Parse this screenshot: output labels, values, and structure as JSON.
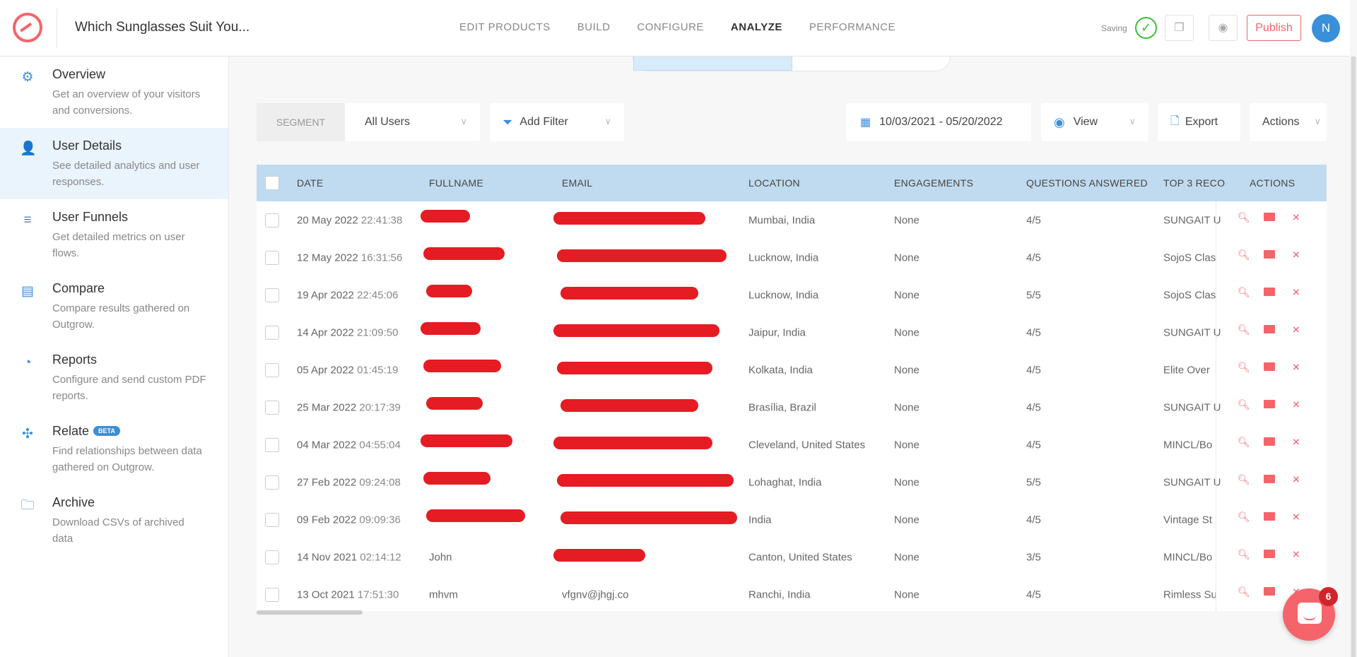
{
  "header": {
    "title": "Which Sunglasses Suit You...",
    "nav": [
      "EDIT PRODUCTS",
      "BUILD",
      "CONFIGURE",
      "ANALYZE",
      "PERFORMANCE"
    ],
    "active_nav": "ANALYZE",
    "saving": "Saving",
    "publish": "Publish",
    "avatar": "N"
  },
  "sidebar": {
    "items": [
      {
        "label": "Overview",
        "desc": "Get an overview of your visitors and conversions.",
        "icon": "gear-icon"
      },
      {
        "label": "User Details",
        "desc": "See detailed analytics and user responses.",
        "icon": "user-icon",
        "active": true
      },
      {
        "label": "User Funnels",
        "desc": "Get detailed metrics on user flows.",
        "icon": "funnel-lines-icon"
      },
      {
        "label": "Compare",
        "desc": "Compare results gathered on Outgrow.",
        "icon": "clipboard-chart-icon"
      },
      {
        "label": "Reports",
        "desc": "Configure and send custom PDF reports.",
        "icon": "pie-chart-icon"
      },
      {
        "label": "Relate",
        "desc": "Find relationships between data gathered on Outgrow.",
        "icon": "puzzle-icon",
        "badge": "BETA"
      },
      {
        "label": "Archive",
        "desc": "Download CSVs of archived data",
        "icon": "folder-icon"
      }
    ]
  },
  "toolbar": {
    "segment_label": "SEGMENT",
    "segment_value": "All Users",
    "add_filter": "Add Filter",
    "date_range": "10/03/2021 - 05/20/2022",
    "view": "View",
    "export": "Export",
    "actions": "Actions"
  },
  "table": {
    "columns": [
      "DATE",
      "FULLNAME",
      "EMAIL",
      "LOCATION",
      "ENGAGEMENTS",
      "QUESTIONS ANSWERED",
      "TOP 3 RECO",
      "ACTIONS"
    ],
    "rows": [
      {
        "date": "20 May 2022",
        "time": "22:41:38",
        "name": null,
        "email": null,
        "location": "Mumbai, India",
        "engagements": "None",
        "questions": "4/5",
        "top3": "SUNGAIT U"
      },
      {
        "date": "12 May 2022",
        "time": "16:31:56",
        "name": null,
        "email": null,
        "location": "Lucknow, India",
        "engagements": "None",
        "questions": "4/5",
        "top3": "SojoS Clas"
      },
      {
        "date": "19 Apr 2022",
        "time": "22:45:06",
        "name": null,
        "email": null,
        "location": "Lucknow, India",
        "engagements": "None",
        "questions": "5/5",
        "top3": "SojoS Clas"
      },
      {
        "date": "14 Apr 2022",
        "time": "21:09:50",
        "name": null,
        "email": null,
        "location": "Jaipur, India",
        "engagements": "None",
        "questions": "4/5",
        "top3": "SUNGAIT U"
      },
      {
        "date": "05 Apr 2022",
        "time": "01:45:19",
        "name": null,
        "email": null,
        "location": "Kolkata, India",
        "engagements": "None",
        "questions": "4/5",
        "top3": "Elite Over"
      },
      {
        "date": "25 Mar 2022",
        "time": "20:17:39",
        "name": null,
        "email": null,
        "location": "Brasília, Brazil",
        "engagements": "None",
        "questions": "4/5",
        "top3": "SUNGAIT U"
      },
      {
        "date": "04 Mar 2022",
        "time": "04:55:04",
        "name": null,
        "email": null,
        "location": "Cleveland, United States",
        "engagements": "None",
        "questions": "4/5",
        "top3": "MINCL/Bo"
      },
      {
        "date": "27 Feb 2022",
        "time": "09:24:08",
        "name": null,
        "email": null,
        "location": "Lohaghat, India",
        "engagements": "None",
        "questions": "5/5",
        "top3": "SUNGAIT U"
      },
      {
        "date": "09 Feb 2022",
        "time": "09:09:36",
        "name": null,
        "email": null,
        "location": "India",
        "engagements": "None",
        "questions": "4/5",
        "top3": "Vintage St"
      },
      {
        "date": "14 Nov 2021",
        "time": "02:14:12",
        "name": "John",
        "email": null,
        "location": "Canton, United States",
        "engagements": "None",
        "questions": "3/5",
        "top3": "MINCL/Bo"
      },
      {
        "date": "13 Oct 2021",
        "time": "17:51:30",
        "name": "mhvm",
        "email": "vfgnv@jhgj.co",
        "location": "Ranchi, India",
        "engagements": "None",
        "questions": "4/5",
        "top3": "Rimless Su"
      }
    ]
  },
  "chat": {
    "badge": "6"
  },
  "colors": {
    "accent": "#f5646a",
    "blue": "#3a8fd9",
    "table_header": "#c0dbef",
    "redaction": "#e51c23"
  }
}
